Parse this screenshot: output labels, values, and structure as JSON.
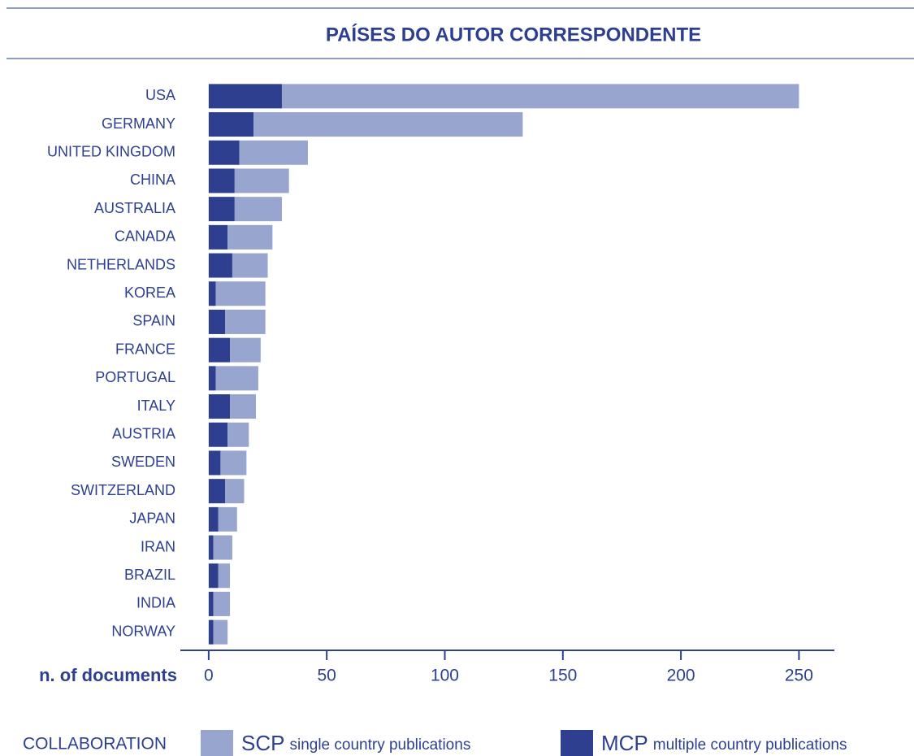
{
  "chart_data": {
    "type": "stacked_barh",
    "title": "PAÍSES DO AUTOR CORRESPONDENTE",
    "categories": [
      "USA",
      "GERMANY",
      "UNITED KINGDOM",
      "CHINA",
      "AUSTRALIA",
      "CANADA",
      "NETHERLANDS",
      "KOREA",
      "SPAIN",
      "FRANCE",
      "PORTUGAL",
      "ITALY",
      "AUSTRIA",
      "SWEDEN",
      "SWITZERLAND",
      "JAPAN",
      "IRAN",
      "BRAZIL",
      "INDIA",
      "NORWAY"
    ],
    "series": [
      {
        "name": "SCP",
        "description": "single country publications",
        "color": "#97a5cf",
        "values": [
          219,
          114,
          29,
          23,
          20,
          19,
          15,
          21,
          17,
          13,
          18,
          11,
          9,
          11,
          8,
          8,
          8,
          5,
          7,
          6
        ]
      },
      {
        "name": "MCP",
        "description": "multiple  country publications",
        "color": "#2e3f8f",
        "values": [
          31,
          19,
          13,
          11,
          11,
          8,
          10,
          3,
          7,
          9,
          3,
          9,
          8,
          5,
          7,
          4,
          2,
          4,
          2,
          2
        ]
      }
    ],
    "xlabel": "n. of documents",
    "xlim": [
      -12,
      265
    ],
    "xticks": [
      0,
      50,
      100,
      150,
      200,
      250
    ],
    "legend_title": "COLLABORATION"
  }
}
